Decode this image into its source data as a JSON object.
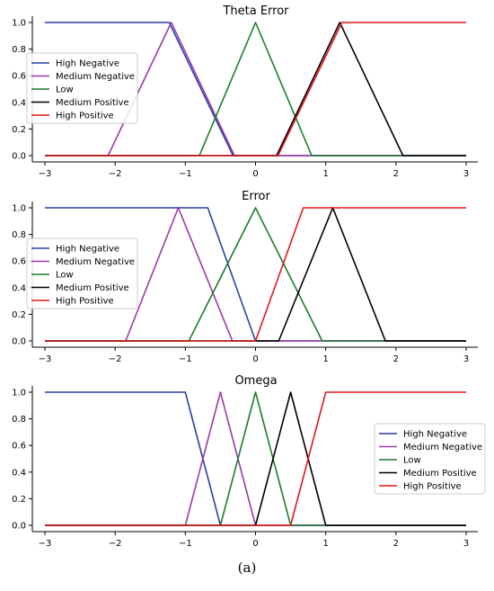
{
  "colors": {
    "high_negative": "#2a3fa6",
    "medium_negative": "#9b3aa6",
    "low": "#1e7a2e",
    "medium_positive": "#000000",
    "high_positive": "#e01818",
    "axis": "#000000"
  },
  "caption": "(a)",
  "chart_data": [
    {
      "type": "line",
      "title": "Theta Error",
      "xlim": [
        -3,
        3
      ],
      "ylim": [
        0,
        1
      ],
      "xticks": [
        -3,
        -2,
        -1,
        0,
        1,
        2,
        3
      ],
      "xtick_labels": [
        "−3",
        "−2",
        "−1",
        "0",
        "1",
        "2",
        "3"
      ],
      "yticks": [
        0,
        0.2,
        0.4,
        0.6,
        0.8,
        1.0
      ],
      "ytick_labels": [
        "0.0",
        "0.2",
        "0.4",
        "0.6",
        "0.8",
        "1.0"
      ],
      "grid": false,
      "legend_position": "left",
      "series": [
        {
          "name": "High Negative",
          "color_key": "high_negative",
          "x": [
            -3,
            -1.23,
            -0.32,
            3
          ],
          "y": [
            1,
            1,
            0,
            0
          ]
        },
        {
          "name": "Medium Negative",
          "color_key": "medium_negative",
          "x": [
            -3,
            -2.1,
            -1.2,
            -0.3,
            3
          ],
          "y": [
            0,
            0,
            1,
            0,
            0
          ]
        },
        {
          "name": "Low",
          "color_key": "low",
          "x": [
            -3,
            -0.8,
            0,
            0.8,
            3
          ],
          "y": [
            0,
            0,
            1,
            0,
            0
          ]
        },
        {
          "name": "Medium Positive",
          "color_key": "medium_positive",
          "x": [
            -3,
            0.3,
            1.2,
            2.1,
            3
          ],
          "y": [
            0,
            0,
            1,
            0,
            0
          ]
        },
        {
          "name": "High Positive",
          "color_key": "high_positive",
          "x": [
            -3,
            0.32,
            1.23,
            3
          ],
          "y": [
            0,
            0,
            1,
            1
          ]
        }
      ]
    },
    {
      "type": "line",
      "title": "Error",
      "xlim": [
        -3,
        3
      ],
      "ylim": [
        0,
        1
      ],
      "xticks": [
        -3,
        -2,
        -1,
        0,
        1,
        2,
        3
      ],
      "xtick_labels": [
        "−3",
        "−2",
        "−1",
        "0",
        "1",
        "2",
        "3"
      ],
      "yticks": [
        0,
        0.2,
        0.4,
        0.6,
        0.8,
        1.0
      ],
      "ytick_labels": [
        "0.0",
        "0.2",
        "0.4",
        "0.6",
        "0.8",
        "1.0"
      ],
      "grid": false,
      "legend_position": "left",
      "series": [
        {
          "name": "High Negative",
          "color_key": "high_negative",
          "x": [
            -3,
            -0.68,
            0,
            3
          ],
          "y": [
            1,
            1,
            0,
            0
          ]
        },
        {
          "name": "Medium Negative",
          "color_key": "medium_negative",
          "x": [
            -3,
            -1.85,
            -1.1,
            -0.33,
            3
          ],
          "y": [
            0,
            0,
            1,
            0,
            0
          ]
        },
        {
          "name": "Low",
          "color_key": "low",
          "x": [
            -3,
            -0.95,
            0,
            0.95,
            3
          ],
          "y": [
            0,
            0,
            1,
            0,
            0
          ]
        },
        {
          "name": "Medium Positive",
          "color_key": "medium_positive",
          "x": [
            -3,
            0.33,
            1.1,
            1.85,
            3
          ],
          "y": [
            0,
            0,
            1,
            0,
            0
          ]
        },
        {
          "name": "High Positive",
          "color_key": "high_positive",
          "x": [
            -3,
            0,
            0.68,
            3
          ],
          "y": [
            0,
            0,
            1,
            1
          ]
        }
      ]
    },
    {
      "type": "line",
      "title": "Omega",
      "xlim": [
        -3,
        3
      ],
      "ylim": [
        0,
        1
      ],
      "xticks": [
        -3,
        -2,
        -1,
        0,
        1,
        2,
        3
      ],
      "xtick_labels": [
        "−3",
        "−2",
        "−1",
        "0",
        "1",
        "2",
        "3"
      ],
      "yticks": [
        0,
        0.2,
        0.4,
        0.6,
        0.8,
        1.0
      ],
      "ytick_labels": [
        "0.0",
        "0.2",
        "0.4",
        "0.6",
        "0.8",
        "1.0"
      ],
      "grid": false,
      "legend_position": "right",
      "series": [
        {
          "name": "High Negative",
          "color_key": "high_negative",
          "x": [
            -3,
            -1,
            -0.5,
            3
          ],
          "y": [
            1,
            1,
            0,
            0
          ]
        },
        {
          "name": "Medium Negative",
          "color_key": "medium_negative",
          "x": [
            -3,
            -1,
            -0.5,
            0,
            3
          ],
          "y": [
            0,
            0,
            1,
            0,
            0
          ]
        },
        {
          "name": "Low",
          "color_key": "low",
          "x": [
            -3,
            -0.5,
            0,
            0.5,
            3
          ],
          "y": [
            0,
            0,
            1,
            0,
            0
          ]
        },
        {
          "name": "Medium Positive",
          "color_key": "medium_positive",
          "x": [
            -3,
            0,
            0.5,
            1,
            3
          ],
          "y": [
            0,
            0,
            1,
            0,
            0
          ]
        },
        {
          "name": "High Positive",
          "color_key": "high_positive",
          "x": [
            -3,
            0.5,
            1,
            3
          ],
          "y": [
            0,
            0,
            1,
            1
          ]
        }
      ]
    }
  ]
}
